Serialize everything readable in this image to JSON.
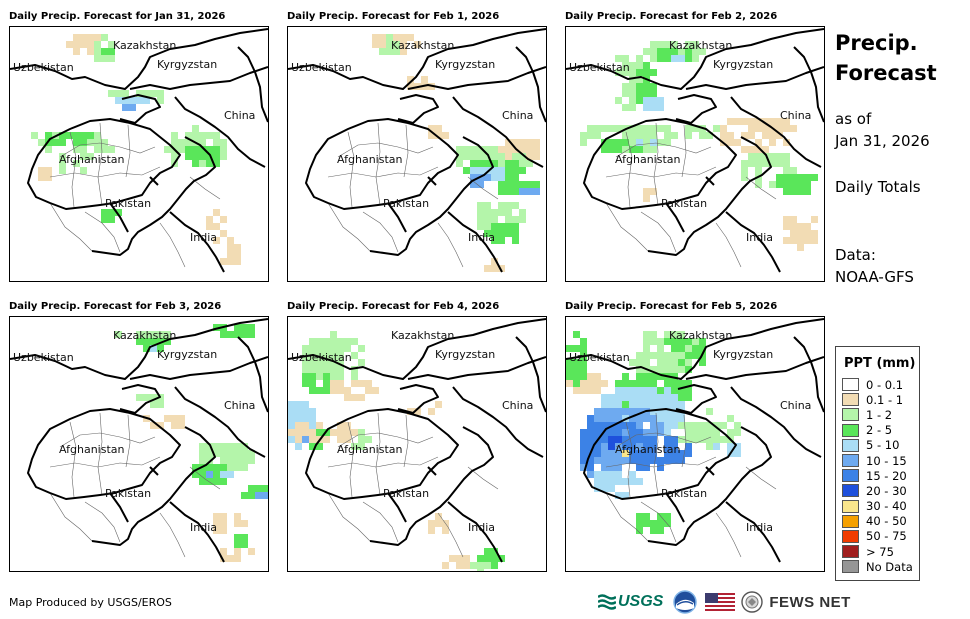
{
  "panels": [
    {
      "title": "Daily Precip. Forecast for Jan 31, 2026"
    },
    {
      "title": "Daily Precip. Forecast for Feb 1, 2026"
    },
    {
      "title": "Daily Precip. Forecast for Feb 2, 2026"
    },
    {
      "title": "Daily Precip. Forecast for Feb 3, 2026"
    },
    {
      "title": "Daily Precip. Forecast for Feb 4, 2026"
    },
    {
      "title": "Daily Precip. Forecast for Feb 5, 2026"
    }
  ],
  "map_labels": {
    "kazakhstan": "Kazakhstan",
    "uzbekistan": "Uzbekistan",
    "kyrgyzstan": "Kyrgyzstan",
    "china": "China",
    "afghanistan": "Afghanistan",
    "pakistan": "Pakistan",
    "india": "India"
  },
  "sidebar": {
    "title_line1": "Precip.",
    "title_line2": "Forecast",
    "as_of_line1": "as of",
    "as_of_line2": "Jan 31, 2026",
    "daily_totals": "Daily Totals",
    "data_line1": "Data:",
    "data_line2": "NOAA-GFS"
  },
  "legend": {
    "title": "PPT (mm)",
    "items": [
      {
        "label": "0 - 0.1",
        "color": "#ffffff"
      },
      {
        "label": "0.1 - 1",
        "color": "#f2dcb4"
      },
      {
        "label": "1 - 2",
        "color": "#b4f5aa"
      },
      {
        "label": "2 - 5",
        "color": "#5ae65a"
      },
      {
        "label": "5 - 10",
        "color": "#aaddf5"
      },
      {
        "label": "10 - 15",
        "color": "#6eaaf0"
      },
      {
        "label": "15 - 20",
        "color": "#3c82e6"
      },
      {
        "label": "20 - 30",
        "color": "#1e50dc"
      },
      {
        "label": "30 - 40",
        "color": "#fae68c"
      },
      {
        "label": "40 - 50",
        "color": "#f5a000"
      },
      {
        "label": "50 - 75",
        "color": "#f03c00"
      },
      {
        "label": "> 75",
        "color": "#a01e1e"
      },
      {
        "label": "No Data",
        "color": "#969696"
      }
    ]
  },
  "footer": {
    "credit": "Map Produced by USGS/EROS",
    "usgs_logo": "USGS",
    "fewsnet_logo": "FEWS NET"
  }
}
